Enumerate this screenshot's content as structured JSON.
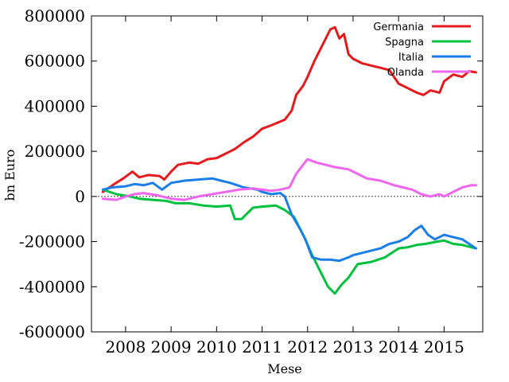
{
  "chart_data": {
    "type": "line",
    "title": "",
    "xlabel": "Mese",
    "ylabel": "bn Euro",
    "xlim": [
      2007.25,
      2015.85
    ],
    "ylim": [
      -600000,
      800000
    ],
    "x_ticks": [
      2008,
      2009,
      2010,
      2011,
      2012,
      2013,
      2014,
      2015
    ],
    "x_tick_labels": [
      "2008",
      "2009",
      "2010",
      "2011",
      "2012",
      "2013",
      "2014",
      "2015"
    ],
    "y_ticks": [
      -600000,
      -400000,
      -200000,
      0,
      200000,
      400000,
      600000,
      800000
    ],
    "y_tick_labels": [
      "-600000",
      "-400000",
      "-200000",
      "0",
      "200000",
      "400000",
      "600000",
      "800000"
    ],
    "zero_line": true,
    "grid": false,
    "legend": "top-right",
    "series": [
      {
        "name": "Germania",
        "color": "#e41a1c",
        "points": [
          [
            2007.5,
            20000
          ],
          [
            2007.75,
            55000
          ],
          [
            2007.95,
            80000
          ],
          [
            2008.15,
            110000
          ],
          [
            2008.3,
            85000
          ],
          [
            2008.5,
            95000
          ],
          [
            2008.75,
            90000
          ],
          [
            2008.85,
            75000
          ],
          [
            2009.0,
            110000
          ],
          [
            2009.15,
            140000
          ],
          [
            2009.4,
            150000
          ],
          [
            2009.6,
            145000
          ],
          [
            2009.8,
            165000
          ],
          [
            2010.0,
            170000
          ],
          [
            2010.2,
            190000
          ],
          [
            2010.4,
            210000
          ],
          [
            2010.6,
            240000
          ],
          [
            2010.8,
            265000
          ],
          [
            2011.0,
            300000
          ],
          [
            2011.2,
            315000
          ],
          [
            2011.5,
            340000
          ],
          [
            2011.65,
            380000
          ],
          [
            2011.75,
            450000
          ],
          [
            2011.9,
            490000
          ],
          [
            2012.0,
            530000
          ],
          [
            2012.15,
            600000
          ],
          [
            2012.3,
            660000
          ],
          [
            2012.5,
            740000
          ],
          [
            2012.6,
            750000
          ],
          [
            2012.7,
            700000
          ],
          [
            2012.8,
            720000
          ],
          [
            2012.9,
            630000
          ],
          [
            2013.0,
            610000
          ],
          [
            2013.2,
            590000
          ],
          [
            2013.4,
            580000
          ],
          [
            2013.6,
            570000
          ],
          [
            2013.8,
            560000
          ],
          [
            2014.0,
            500000
          ],
          [
            2014.2,
            480000
          ],
          [
            2014.4,
            460000
          ],
          [
            2014.55,
            450000
          ],
          [
            2014.7,
            470000
          ],
          [
            2014.9,
            460000
          ],
          [
            2015.0,
            510000
          ],
          [
            2015.2,
            540000
          ],
          [
            2015.4,
            530000
          ],
          [
            2015.55,
            555000
          ],
          [
            2015.7,
            550000
          ]
        ]
      },
      {
        "name": "Spagna",
        "color": "#00c040",
        "points": [
          [
            2007.5,
            30000
          ],
          [
            2007.8,
            10000
          ],
          [
            2008.1,
            0
          ],
          [
            2008.3,
            -10000
          ],
          [
            2008.6,
            -15000
          ],
          [
            2008.9,
            -20000
          ],
          [
            2009.1,
            -30000
          ],
          [
            2009.4,
            -30000
          ],
          [
            2009.7,
            -40000
          ],
          [
            2010.0,
            -45000
          ],
          [
            2010.3,
            -40000
          ],
          [
            2010.4,
            -100000
          ],
          [
            2010.55,
            -100000
          ],
          [
            2010.8,
            -50000
          ],
          [
            2011.0,
            -45000
          ],
          [
            2011.3,
            -40000
          ],
          [
            2011.5,
            -60000
          ],
          [
            2011.7,
            -90000
          ],
          [
            2011.85,
            -150000
          ],
          [
            2011.95,
            -190000
          ],
          [
            2012.1,
            -260000
          ],
          [
            2012.3,
            -340000
          ],
          [
            2012.45,
            -400000
          ],
          [
            2012.6,
            -430000
          ],
          [
            2012.75,
            -390000
          ],
          [
            2012.9,
            -360000
          ],
          [
            2013.1,
            -300000
          ],
          [
            2013.4,
            -290000
          ],
          [
            2013.7,
            -270000
          ],
          [
            2013.85,
            -250000
          ],
          [
            2014.0,
            -230000
          ],
          [
            2014.2,
            -225000
          ],
          [
            2014.4,
            -215000
          ],
          [
            2014.6,
            -210000
          ],
          [
            2014.85,
            -200000
          ],
          [
            2015.0,
            -195000
          ],
          [
            2015.2,
            -210000
          ],
          [
            2015.4,
            -215000
          ],
          [
            2015.6,
            -225000
          ],
          [
            2015.7,
            -230000
          ]
        ]
      },
      {
        "name": "Italia",
        "color": "#1a7ee6",
        "points": [
          [
            2007.5,
            30000
          ],
          [
            2007.7,
            40000
          ],
          [
            2008.0,
            45000
          ],
          [
            2008.2,
            55000
          ],
          [
            2008.4,
            50000
          ],
          [
            2008.6,
            60000
          ],
          [
            2008.8,
            30000
          ],
          [
            2009.0,
            60000
          ],
          [
            2009.3,
            70000
          ],
          [
            2009.6,
            75000
          ],
          [
            2009.9,
            80000
          ],
          [
            2010.1,
            70000
          ],
          [
            2010.3,
            60000
          ],
          [
            2010.6,
            40000
          ],
          [
            2010.9,
            30000
          ],
          [
            2011.0,
            20000
          ],
          [
            2011.2,
            10000
          ],
          [
            2011.4,
            15000
          ],
          [
            2011.5,
            0
          ],
          [
            2011.65,
            -80000
          ],
          [
            2011.85,
            -150000
          ],
          [
            2011.95,
            -190000
          ],
          [
            2012.1,
            -270000
          ],
          [
            2012.3,
            -280000
          ],
          [
            2012.5,
            -280000
          ],
          [
            2012.7,
            -285000
          ],
          [
            2012.9,
            -270000
          ],
          [
            2013.0,
            -260000
          ],
          [
            2013.2,
            -250000
          ],
          [
            2013.4,
            -240000
          ],
          [
            2013.6,
            -230000
          ],
          [
            2013.8,
            -210000
          ],
          [
            2014.0,
            -200000
          ],
          [
            2014.2,
            -180000
          ],
          [
            2014.35,
            -150000
          ],
          [
            2014.5,
            -130000
          ],
          [
            2014.65,
            -170000
          ],
          [
            2014.8,
            -190000
          ],
          [
            2015.0,
            -170000
          ],
          [
            2015.2,
            -180000
          ],
          [
            2015.4,
            -190000
          ],
          [
            2015.55,
            -210000
          ],
          [
            2015.7,
            -230000
          ]
        ]
      },
      {
        "name": "Olanda",
        "color": "#ee66ee",
        "points": [
          [
            2007.5,
            -10000
          ],
          [
            2007.8,
            -15000
          ],
          [
            2008.0,
            0
          ],
          [
            2008.2,
            10000
          ],
          [
            2008.4,
            15000
          ],
          [
            2008.7,
            5000
          ],
          [
            2009.0,
            -10000
          ],
          [
            2009.3,
            -15000
          ],
          [
            2009.6,
            0
          ],
          [
            2009.9,
            10000
          ],
          [
            2010.2,
            20000
          ],
          [
            2010.5,
            30000
          ],
          [
            2010.8,
            35000
          ],
          [
            2011.0,
            30000
          ],
          [
            2011.2,
            25000
          ],
          [
            2011.4,
            30000
          ],
          [
            2011.6,
            40000
          ],
          [
            2011.75,
            100000
          ],
          [
            2011.9,
            140000
          ],
          [
            2012.0,
            165000
          ],
          [
            2012.2,
            150000
          ],
          [
            2012.4,
            140000
          ],
          [
            2012.6,
            130000
          ],
          [
            2012.9,
            120000
          ],
          [
            2013.1,
            100000
          ],
          [
            2013.3,
            80000
          ],
          [
            2013.6,
            70000
          ],
          [
            2013.9,
            50000
          ],
          [
            2014.1,
            40000
          ],
          [
            2014.3,
            30000
          ],
          [
            2014.5,
            10000
          ],
          [
            2014.7,
            0
          ],
          [
            2014.9,
            10000
          ],
          [
            2015.0,
            0
          ],
          [
            2015.2,
            20000
          ],
          [
            2015.4,
            40000
          ],
          [
            2015.6,
            50000
          ],
          [
            2015.7,
            50000
          ]
        ]
      }
    ]
  }
}
